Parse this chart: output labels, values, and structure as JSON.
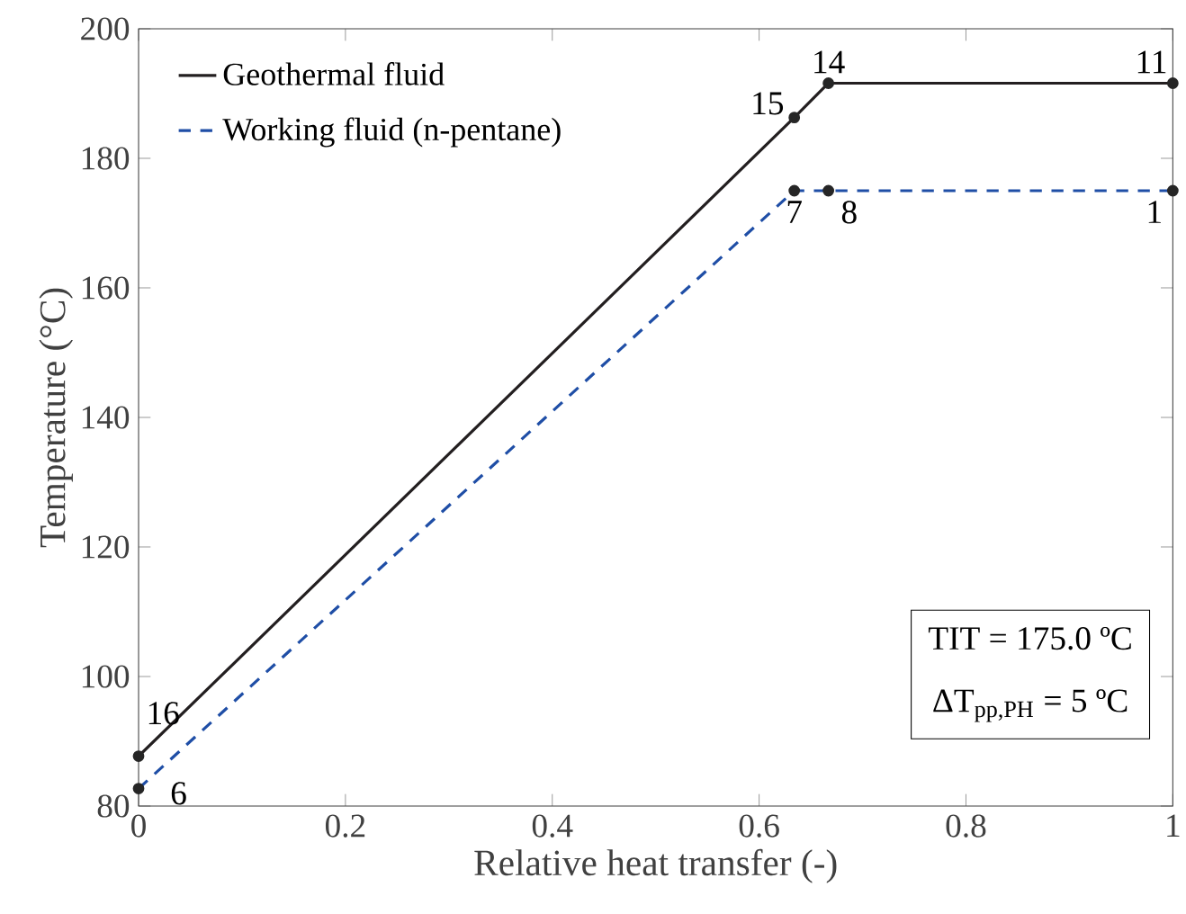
{
  "chart_data": {
    "type": "line",
    "xlabel": "Relative heat transfer (-)",
    "ylabel": "Temperature (°C)",
    "series": [
      {
        "name": "Geothermal fluid",
        "color": "#231f20",
        "line_style": "solid",
        "x": [
          0,
          0.634,
          0.667,
          1
        ],
        "values": [
          87.7,
          186.3,
          191.6,
          191.6
        ]
      },
      {
        "name": "Working fluid (n-pentane)",
        "color": "#1f4ea6",
        "line_style": "dashed",
        "x": [
          0,
          0.634,
          0.667,
          1
        ],
        "values": [
          82.7,
          175,
          175,
          175
        ]
      }
    ],
    "marker": "circle",
    "legend": "top left",
    "grid": false,
    "xlim": [
      0,
      1
    ],
    "xticks": [
      0,
      0.2,
      0.4,
      0.6,
      0.8,
      1
    ],
    "ylim": [
      80,
      200
    ],
    "yticks": [
      80,
      100,
      120,
      140,
      160,
      180,
      200
    ],
    "annotations": [
      {
        "text": "16",
        "x": 0,
        "y": 87.7
      },
      {
        "text": "15",
        "x": 0.634,
        "y": 186.3
      },
      {
        "text": "14",
        "x": 0.667,
        "y": 191.6
      },
      {
        "text": "11",
        "x": 1,
        "y": 191.6
      },
      {
        "text": "6",
        "x": 0,
        "y": 82.7
      },
      {
        "text": "7",
        "x": 0.634,
        "y": 175
      },
      {
        "text": "8",
        "x": 0.667,
        "y": 175
      },
      {
        "text": "1",
        "x": 1,
        "y": 175
      },
      "TIT = 175.0 ºC",
      "ΔT$_{pp,PH}$ = 5 ºC"
    ]
  }
}
